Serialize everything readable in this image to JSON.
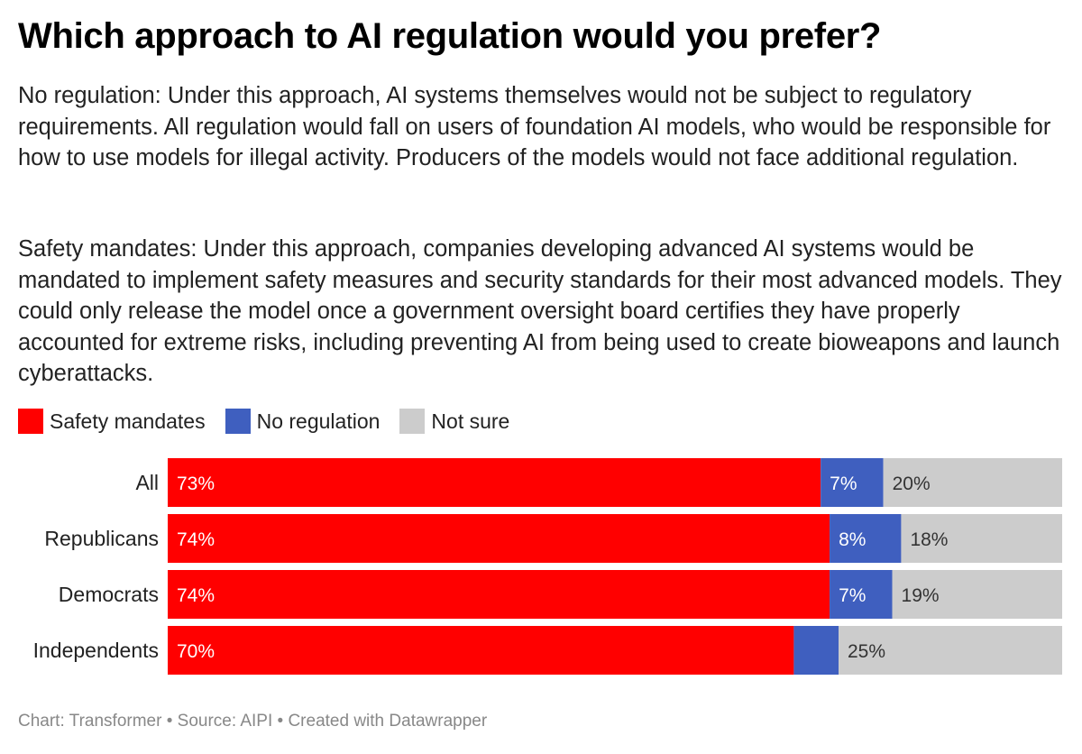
{
  "title": "Which approach to AI regulation would you prefer?",
  "description": [
    "No regulation: Under this approach, AI systems themselves would not be subject to regulatory requirements. All regulation would fall on users of foundation AI models, who would be responsible for how to use models for illegal activity. Producers of the models would not face additional regulation.",
    "Safety mandates: Under this approach, companies developing advanced AI systems would be mandated to implement safety measures and security standards for their most advanced models. They could only release the model once a government oversight board certifies they have properly accounted for extreme risks, including preventing AI from being used to create bioweapons and launch cyberattacks."
  ],
  "footer": "Chart: Transformer • Source: AIPI • Created with Datawrapper",
  "chart_data": {
    "type": "bar",
    "orientation": "horizontal",
    "stacked": true,
    "normalized": true,
    "categories": [
      "All",
      "Republicans",
      "Democrats",
      "Independents"
    ],
    "series": [
      {
        "name": "Safety mandates",
        "color": "#ff0000",
        "label_color": "#ffffff",
        "values": [
          73,
          74,
          74,
          70
        ]
      },
      {
        "name": "No regulation",
        "color": "#3f5fbf",
        "label_color": "#ffffff",
        "values": [
          7,
          8,
          7,
          5
        ]
      },
      {
        "name": "Not sure",
        "color": "#cccccc",
        "label_color": "#333333",
        "values": [
          20,
          18,
          19,
          25
        ]
      }
    ],
    "data_labels": [
      [
        "73%",
        "7%",
        "20%"
      ],
      [
        "74%",
        "8%",
        "18%"
      ],
      [
        "74%",
        "7%",
        "19%"
      ],
      [
        "70%",
        "",
        "25%"
      ]
    ],
    "legend_position": "top-left",
    "grid": false
  }
}
